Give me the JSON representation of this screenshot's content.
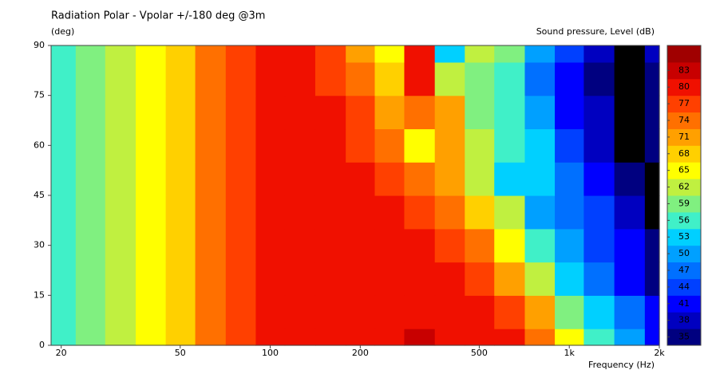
{
  "chart_data": {
    "type": "heatmap",
    "title": "Radiation Polar - Vpolar +/-180 deg @3m",
    "y_label": "(deg)",
    "colorbar_label": "Sound pressure, Level  (dB)",
    "x_label": "Frequency  (Hz)",
    "x_log": true,
    "xlim": [
      18.5,
      2000
    ],
    "xticks": [
      20,
      50,
      100,
      200,
      500,
      {
        "value": 1000,
        "label": "1k"
      },
      {
        "value": 2000,
        "label": "2k"
      }
    ],
    "ylim": [
      0,
      90
    ],
    "yticks": [
      0,
      15,
      30,
      45,
      60,
      75,
      90
    ],
    "x": [
      20,
      25,
      31.5,
      40,
      50,
      63,
      80,
      100,
      125,
      160,
      200,
      250,
      315,
      400,
      500,
      630,
      800,
      1000,
      1250,
      1600,
      2000
    ],
    "y": [
      0,
      10,
      20,
      30,
      40,
      50,
      60,
      70,
      80,
      90
    ],
    "z": [
      [
        56,
        59,
        62,
        65,
        68,
        74,
        77,
        80,
        80,
        80,
        80,
        80,
        83,
        80,
        80,
        80,
        74,
        65,
        56,
        50,
        41
      ],
      [
        56,
        59,
        62,
        65,
        68,
        74,
        77,
        80,
        80,
        80,
        80,
        80,
        80,
        80,
        80,
        77,
        71,
        59,
        53,
        47,
        41
      ],
      [
        56,
        59,
        62,
        65,
        68,
        74,
        77,
        80,
        80,
        80,
        80,
        80,
        80,
        80,
        77,
        71,
        62,
        53,
        47,
        41,
        35
      ],
      [
        56,
        59,
        62,
        65,
        68,
        74,
        77,
        80,
        80,
        80,
        80,
        80,
        80,
        77,
        74,
        65,
        56,
        50,
        44,
        41,
        35
      ],
      [
        56,
        59,
        62,
        65,
        68,
        74,
        77,
        80,
        80,
        80,
        80,
        80,
        77,
        74,
        68,
        62,
        50,
        47,
        44,
        38,
        32
      ],
      [
        56,
        59,
        62,
        65,
        68,
        74,
        77,
        80,
        80,
        80,
        80,
        77,
        74,
        71,
        62,
        53,
        53,
        47,
        41,
        35,
        32
      ],
      [
        56,
        59,
        62,
        65,
        68,
        74,
        77,
        80,
        80,
        80,
        77,
        74,
        65,
        71,
        62,
        56,
        53,
        44,
        38,
        32,
        35
      ],
      [
        56,
        59,
        62,
        65,
        68,
        74,
        77,
        80,
        80,
        80,
        77,
        71,
        74,
        71,
        59,
        56,
        50,
        41,
        38,
        32,
        35
      ],
      [
        56,
        59,
        62,
        65,
        68,
        74,
        77,
        80,
        80,
        77,
        74,
        68,
        80,
        62,
        59,
        56,
        47,
        41,
        35,
        32,
        35
      ],
      [
        56,
        59,
        62,
        65,
        68,
        74,
        77,
        80,
        80,
        77,
        71,
        65,
        80,
        53,
        62,
        59,
        50,
        44,
        38,
        32,
        38
      ]
    ],
    "zlim": [
      33.5,
      87.5
    ],
    "colors": [
      "#000080",
      "#0000c0",
      "#0000ff",
      "#0040ff",
      "#0070ff",
      "#00a0ff",
      "#00d0ff",
      "#40f0c8",
      "#80f080",
      "#c0f040",
      "#ffff00",
      "#ffd000",
      "#ffa000",
      "#ff7000",
      "#ff4000",
      "#f01000",
      "#c80000",
      "#a00000"
    ],
    "below_color": "#000000",
    "zticks": [
      35,
      38,
      41,
      44,
      47,
      50,
      53,
      56,
      59,
      62,
      65,
      68,
      71,
      74,
      77,
      80,
      83
    ]
  }
}
